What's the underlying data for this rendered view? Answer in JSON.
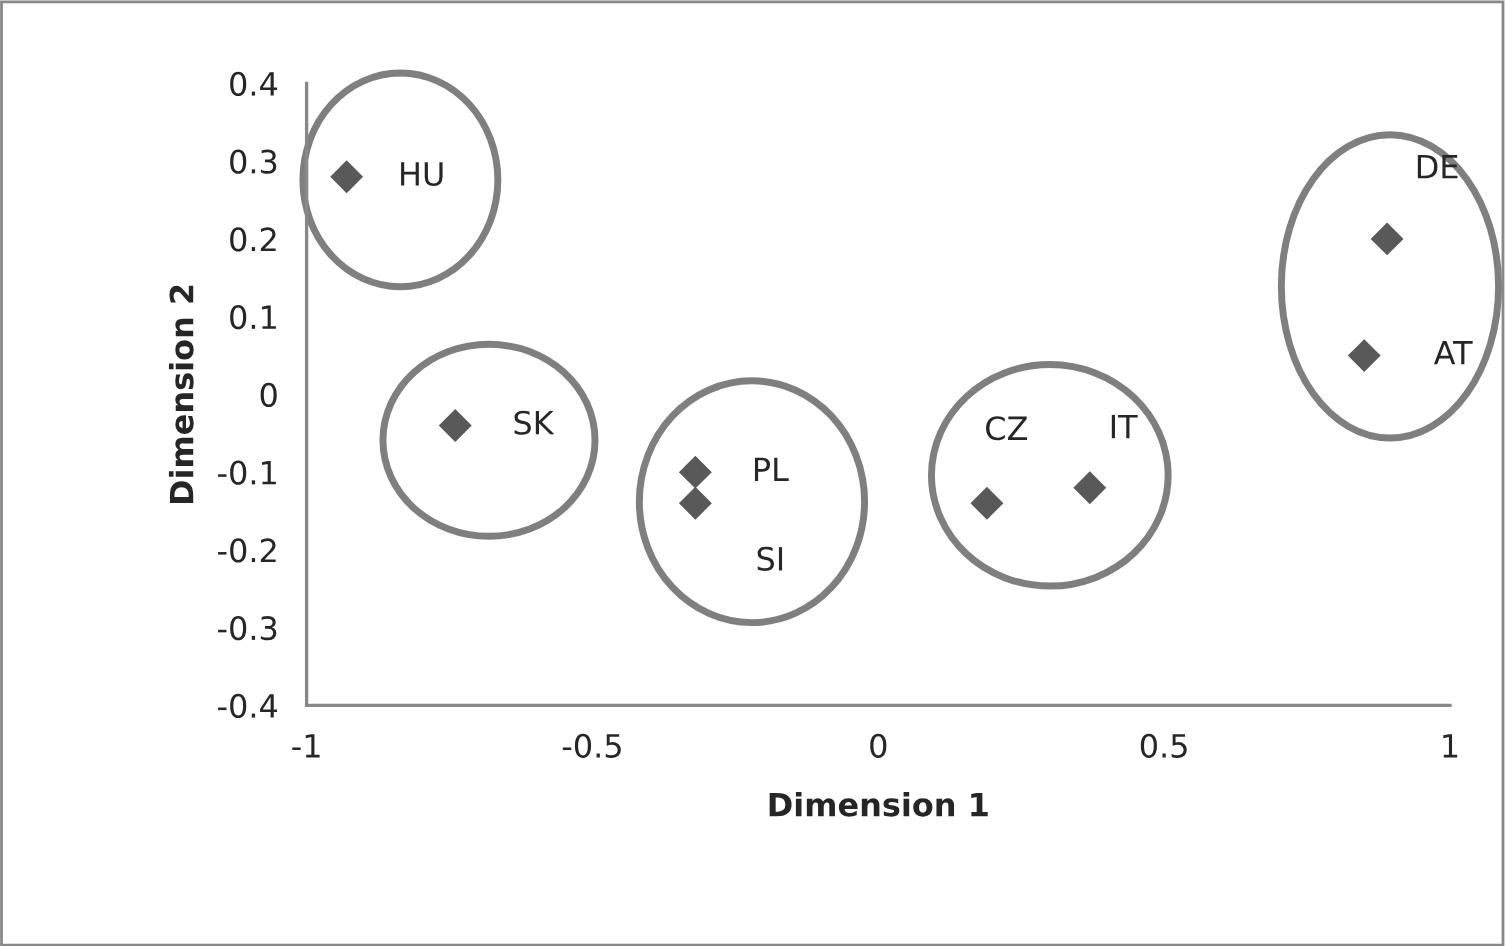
{
  "chart_data": {
    "type": "scatter",
    "xlabel": "Dimension 1",
    "ylabel": "Dimension 2",
    "x": [
      -0.93,
      -0.74,
      -0.32,
      -0.32,
      0.19,
      0.37,
      0.89,
      0.85
    ],
    "series": [
      {
        "color": "#595959",
        "values": [
          0.28,
          -0.04,
          -0.1,
          -0.14,
          -0.14,
          -0.12,
          0.2,
          0.05
        ]
      }
    ],
    "marker": "diamond",
    "grid": false,
    "xlim": [
      -1,
      1
    ],
    "xticks": [
      -1,
      -0.5,
      0,
      0.5,
      1
    ],
    "ylim": [
      -0.4,
      0.4
    ],
    "yticks": [
      -0.4,
      -0.3,
      -0.2,
      -0.1,
      0,
      0.1,
      0.2,
      0.3,
      0.4
    ],
    "annotations": [
      {
        "text": "HU",
        "x": -0.93,
        "y": 0.28
      },
      {
        "text": "SK",
        "x": -0.74,
        "y": -0.04
      },
      {
        "text": "PL",
        "x": -0.32,
        "y": -0.1
      },
      {
        "text": "SI",
        "x": -0.32,
        "y": -0.14
      },
      {
        "text": "CZ",
        "x": 0.19,
        "y": -0.14
      },
      {
        "text": "IT",
        "x": 0.37,
        "y": -0.12
      },
      {
        "text": "DE",
        "x": 0.89,
        "y": 0.2
      },
      {
        "text": "AT",
        "x": 0.85,
        "y": 0.05
      }
    ]
  }
}
